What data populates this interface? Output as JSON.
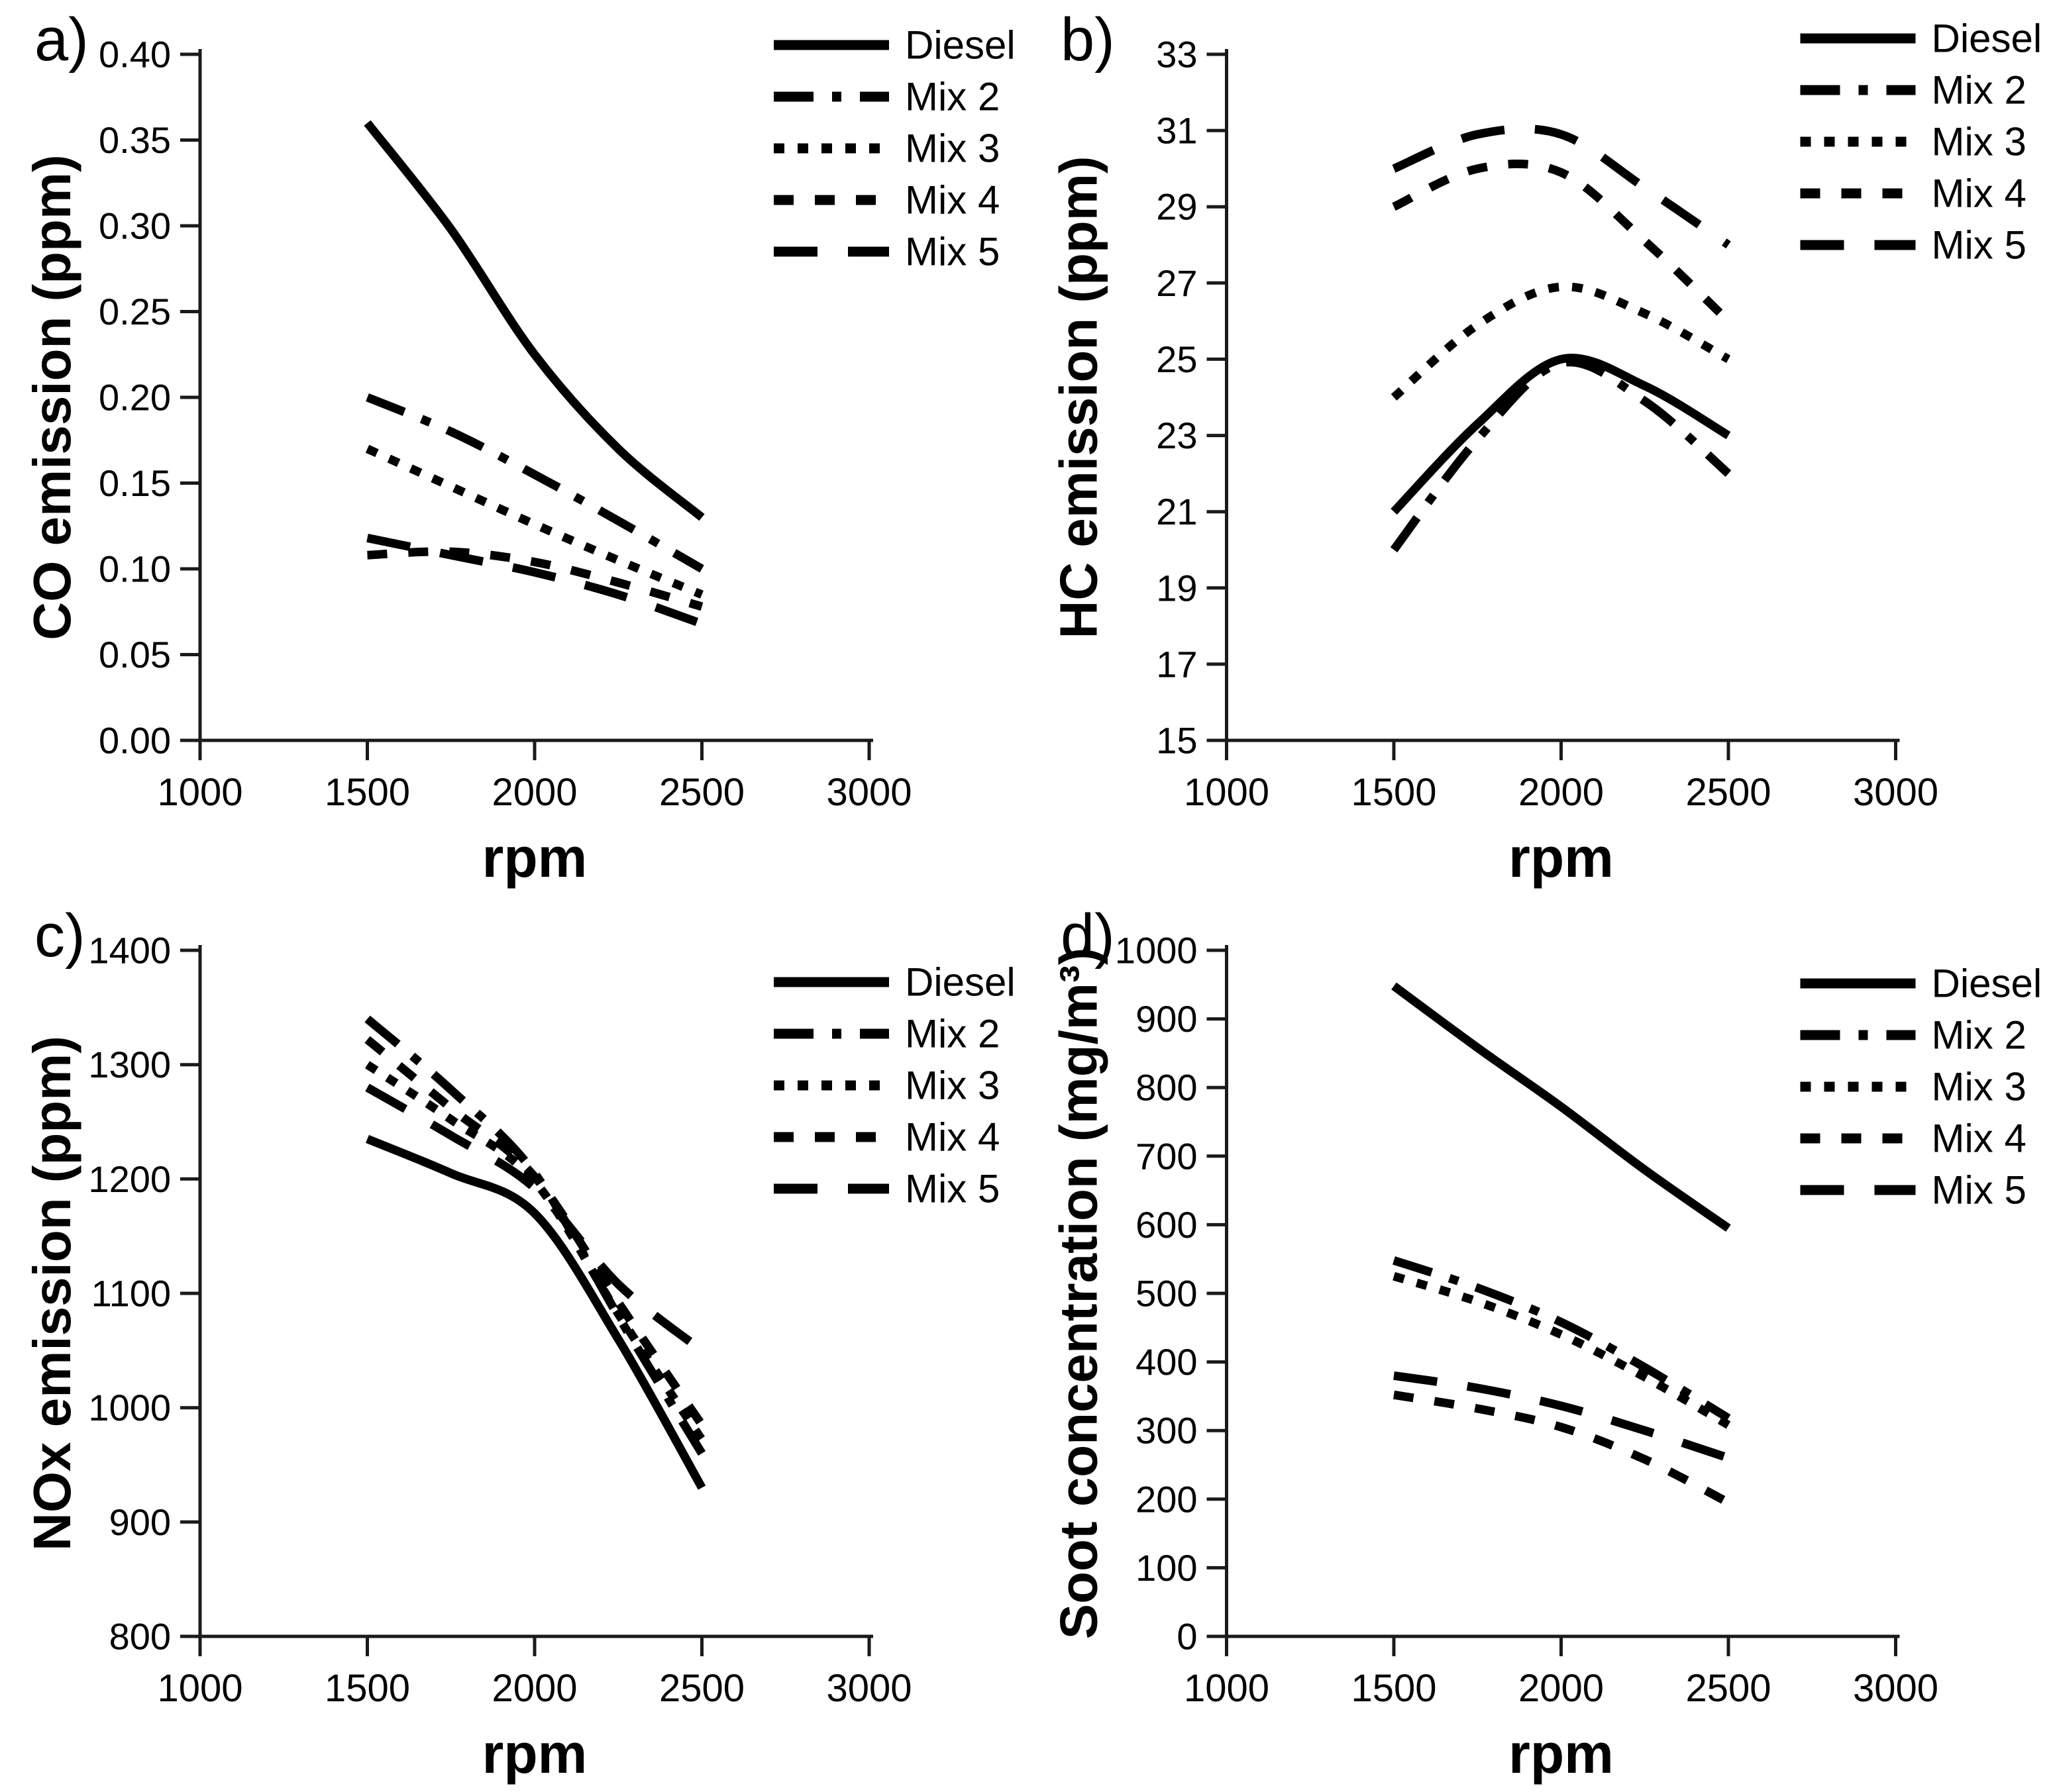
{
  "figure": {
    "background": "#ffffff",
    "line_color": "#000000",
    "axis_color": "#1a1a1a"
  },
  "chart_data": [
    {
      "type": "line",
      "panel_label": "a)",
      "xlabel": "rpm",
      "ylabel": "CO emission (ppm)",
      "xlim": [
        1000,
        3000
      ],
      "ylim": [
        0.0,
        0.4
      ],
      "xticks": [
        1000,
        1500,
        2000,
        2500,
        3000
      ],
      "yticks": [
        0.0,
        0.05,
        0.1,
        0.15,
        0.2,
        0.25,
        0.3,
        0.35,
        0.4
      ],
      "y_decimals": 2,
      "grid": false,
      "legend_position": "top-right",
      "x": [
        1500,
        1750,
        2000,
        2250,
        2500
      ],
      "series": [
        {
          "name": "Diesel",
          "style": "solid",
          "values": [
            0.36,
            0.298,
            0.225,
            0.17,
            0.13
          ]
        },
        {
          "name": "Mix 2",
          "style": "dashdot",
          "values": [
            0.2,
            0.18,
            0.155,
            0.128,
            0.1
          ]
        },
        {
          "name": "Mix 3",
          "style": "dot",
          "values": [
            0.17,
            0.148,
            0.126,
            0.105,
            0.085
          ]
        },
        {
          "name": "Mix 4",
          "style": "shortdash",
          "values": [
            0.108,
            0.11,
            0.104,
            0.092,
            0.078
          ]
        },
        {
          "name": "Mix 5",
          "style": "longdash",
          "values": [
            0.118,
            0.108,
            0.098,
            0.085,
            0.068
          ]
        }
      ]
    },
    {
      "type": "line",
      "panel_label": "b)",
      "xlabel": "rpm",
      "ylabel": "HC emission (ppm)",
      "xlim": [
        1000,
        3000
      ],
      "ylim": [
        15,
        33
      ],
      "xticks": [
        1000,
        1500,
        2000,
        2500,
        3000
      ],
      "yticks": [
        15,
        17,
        19,
        21,
        23,
        25,
        27,
        29,
        31,
        33
      ],
      "y_decimals": 0,
      "grid": false,
      "legend_position": "top-right",
      "x": [
        1500,
        1750,
        2000,
        2250,
        2500
      ],
      "series": [
        {
          "name": "Diesel",
          "style": "solid",
          "values": [
            21.0,
            23.3,
            25.0,
            24.3,
            23.0
          ]
        },
        {
          "name": "Mix 2",
          "style": "dashdot",
          "values": [
            20.0,
            22.9,
            24.9,
            23.9,
            22.0
          ]
        },
        {
          "name": "Mix 3",
          "style": "dot",
          "values": [
            24.0,
            25.9,
            26.9,
            26.2,
            25.0
          ]
        },
        {
          "name": "Mix 4",
          "style": "shortdash",
          "values": [
            29.0,
            30.0,
            29.9,
            28.1,
            26.0
          ]
        },
        {
          "name": "Mix 5",
          "style": "longdash",
          "values": [
            30.0,
            30.9,
            30.9,
            29.5,
            28.0
          ]
        }
      ]
    },
    {
      "type": "line",
      "panel_label": "c)",
      "xlabel": "rpm",
      "ylabel": "NOx emission (ppm)",
      "xlim": [
        1000,
        3000
      ],
      "ylim": [
        800,
        1400
      ],
      "xticks": [
        1000,
        1500,
        2000,
        2500,
        3000
      ],
      "yticks": [
        800,
        900,
        1000,
        1100,
        1200,
        1300,
        1400
      ],
      "y_decimals": 0,
      "grid": false,
      "legend_position": "top-right",
      "x": [
        1500,
        1750,
        2000,
        2250,
        2500
      ],
      "series": [
        {
          "name": "Diesel",
          "style": "solid",
          "values": [
            1235,
            1205,
            1170,
            1060,
            930
          ]
        },
        {
          "name": "Mix 2",
          "style": "dashdot",
          "values": [
            1340,
            1278,
            1205,
            1080,
            960
          ]
        },
        {
          "name": "Mix 3",
          "style": "dot",
          "values": [
            1300,
            1252,
            1198,
            1082,
            972
          ]
        },
        {
          "name": "Mix 4",
          "style": "shortdash",
          "values": [
            1322,
            1262,
            1202,
            1092,
            985
          ]
        },
        {
          "name": "Mix 5",
          "style": "longdash",
          "values": [
            1280,
            1238,
            1192,
            1108,
            1050
          ]
        }
      ]
    },
    {
      "type": "line",
      "panel_label": "d)",
      "xlabel": "rpm",
      "ylabel": "Soot concentration (mg/m³)",
      "xlim": [
        1000,
        3000
      ],
      "ylim": [
        0,
        1000
      ],
      "xticks": [
        1000,
        1500,
        2000,
        2500,
        3000
      ],
      "yticks": [
        0,
        100,
        200,
        300,
        400,
        500,
        600,
        700,
        800,
        900,
        1000
      ],
      "y_decimals": 0,
      "grid": false,
      "legend_position": "top-right",
      "x": [
        1500,
        1750,
        2000,
        2250,
        2500
      ],
      "series": [
        {
          "name": "Diesel",
          "style": "solid",
          "values": [
            948,
            858,
            772,
            680,
            595
          ]
        },
        {
          "name": "Mix 2",
          "style": "dashdot",
          "values": [
            548,
            508,
            458,
            392,
            318
          ]
        },
        {
          "name": "Mix 3",
          "style": "dot",
          "values": [
            525,
            488,
            440,
            378,
            308
          ]
        },
        {
          "name": "Mix 4",
          "style": "shortdash",
          "values": [
            352,
            332,
            305,
            258,
            195
          ]
        },
        {
          "name": "Mix 5",
          "style": "longdash",
          "values": [
            380,
            362,
            336,
            300,
            260
          ]
        }
      ]
    }
  ]
}
